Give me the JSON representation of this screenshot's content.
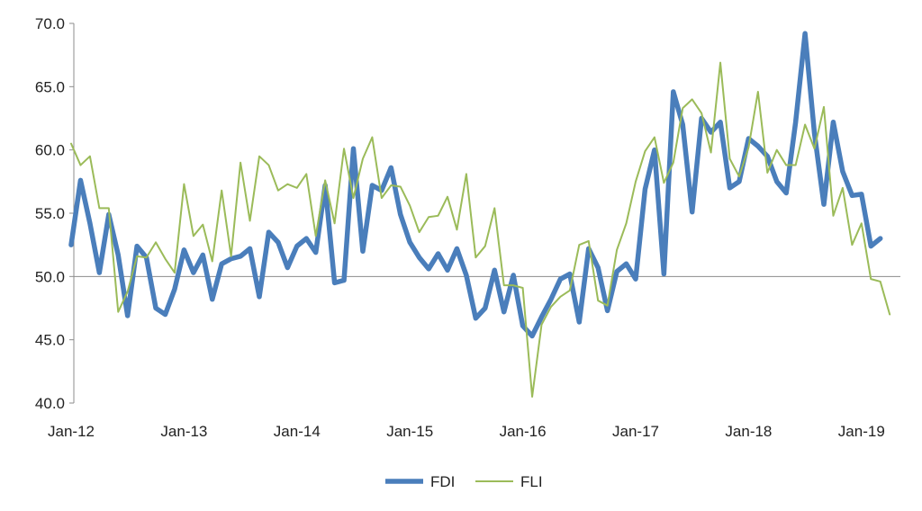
{
  "chart_data": {
    "type": "line",
    "title": "",
    "xlabel": "",
    "ylabel": "",
    "ylim": [
      40,
      70
    ],
    "yticks": [
      "70.0",
      "65.0",
      "60.0",
      "55.0",
      "50.0",
      "45.0",
      "40.0"
    ],
    "ytick_values": [
      70,
      65,
      60,
      55,
      50,
      45,
      40
    ],
    "reference_line": 50,
    "x_tick_labels": [
      "Jan-12",
      "Jan-13",
      "Jan-14",
      "Jan-15",
      "Jan-16",
      "Jan-17",
      "Jan-18",
      "Jan-19"
    ],
    "x_tick_index": [
      0,
      12,
      24,
      36,
      48,
      60,
      72,
      84
    ],
    "legend_position": "bottom-center",
    "series": [
      {
        "name": "FDI",
        "color": "#4A7EBB",
        "width": "thick",
        "values": [
          52.5,
          57.6,
          54.2,
          50.3,
          54.9,
          51.7,
          46.9,
          52.4,
          51.5,
          47.5,
          47.0,
          49.0,
          52.1,
          50.3,
          51.7,
          48.2,
          51.0,
          51.4,
          51.6,
          52.2,
          48.4,
          53.5,
          52.7,
          50.7,
          52.4,
          53.0,
          51.9,
          57.2,
          49.5,
          49.7,
          60.1,
          52.0,
          57.2,
          56.8,
          58.6,
          54.9,
          52.7,
          51.5,
          50.6,
          51.8,
          50.5,
          52.2,
          50.1,
          46.7,
          47.5,
          50.5,
          47.2,
          50.1,
          46.1,
          45.3,
          46.8,
          48.2,
          49.8,
          50.2,
          46.4,
          52.2,
          50.7,
          47.3,
          50.4,
          51.0,
          49.8,
          56.9,
          60.0,
          50.2,
          64.6,
          62.0,
          55.1,
          62.5,
          61.4,
          62.2,
          57.0,
          57.5,
          60.9,
          60.3,
          59.5,
          57.5,
          56.6,
          62.2,
          69.2,
          61.3,
          55.7,
          62.2,
          58.3,
          56.4,
          56.5,
          52.4,
          53.0
        ]
      },
      {
        "name": "FLI",
        "color": "#9BBB59",
        "width": "thin",
        "values": [
          60.5,
          58.8,
          59.5,
          55.4,
          55.4,
          47.2,
          48.8,
          51.6,
          51.5,
          52.7,
          51.4,
          50.3,
          57.3,
          53.2,
          54.1,
          51.2,
          56.8,
          51.6,
          59.0,
          54.4,
          59.5,
          58.8,
          56.8,
          57.3,
          57.0,
          58.1,
          53.2,
          57.6,
          54.2,
          60.1,
          56.2,
          59.3,
          61.0,
          56.2,
          57.2,
          57.1,
          55.6,
          53.5,
          54.7,
          54.8,
          56.3,
          53.7,
          58.1,
          51.5,
          52.4,
          55.4,
          49.3,
          49.3,
          49.1,
          40.5,
          46.2,
          47.6,
          48.4,
          48.9,
          52.5,
          52.8,
          48.1,
          47.7,
          52.1,
          54.2,
          57.5,
          59.9,
          61.0,
          57.4,
          59.0,
          63.3,
          64.0,
          62.9,
          59.8,
          66.9,
          59.3,
          57.9,
          60.2,
          64.6,
          58.2,
          60.0,
          58.8,
          58.8,
          62.0,
          60.1,
          63.4,
          54.8,
          57.0,
          52.5,
          54.2,
          49.8,
          49.6,
          47.0
        ]
      }
    ]
  }
}
